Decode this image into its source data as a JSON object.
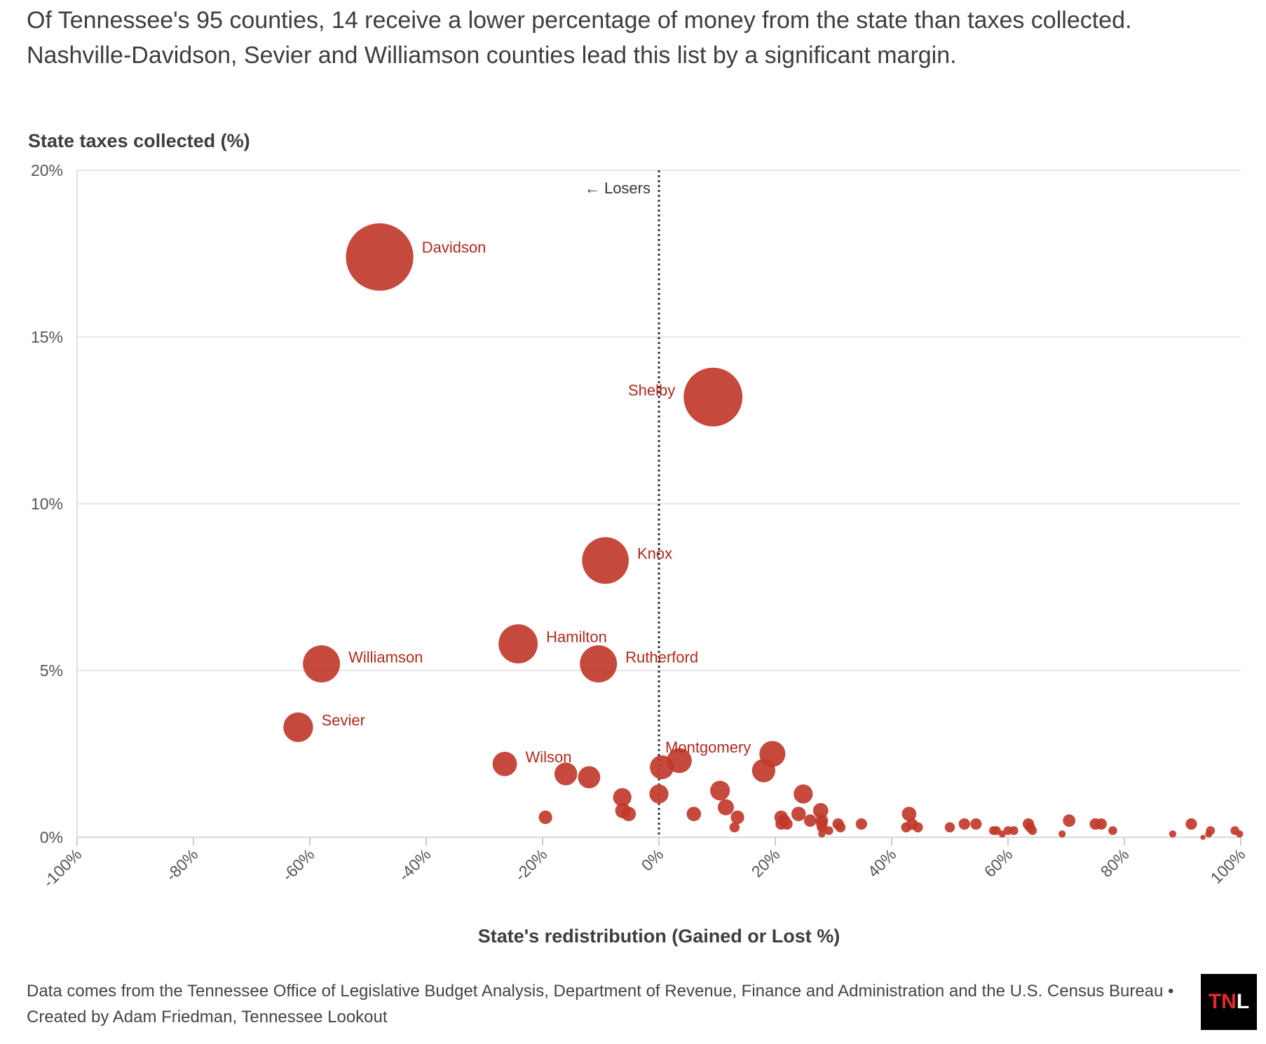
{
  "subtitle": {
    "line1": "Of Tennessee's 95 counties, 14 receive a lower percentage of money from the state than taxes collected.",
    "line2": "Nashville-Davidson, Sevier and Williamson counties lead this list by a significant margin."
  },
  "footer": {
    "source": "Data comes from the Tennessee Office of Legislative Budget Analysis, Department of Revenue, Finance and Administration and the U.S. Census Bureau • Created by Adam Friedman, Tennessee Lookout"
  },
  "logo": {
    "part1": "TN",
    "part2": "L"
  },
  "colors": {
    "point": "#c0392b",
    "label": "#b02a1e",
    "grid": "#e6e6e6"
  },
  "chart_data": {
    "type": "scatter",
    "xlabel": "State's redistribution (Gained or Lost %)",
    "ylabel": "State taxes collected (%)",
    "xlim": [
      -100,
      100
    ],
    "ylim": [
      0,
      20
    ],
    "x_ticks": [
      -100,
      -80,
      -60,
      -40,
      -20,
      0,
      20,
      40,
      60,
      80,
      100
    ],
    "x_tick_labels": [
      "-100%",
      "-80%",
      "-60%",
      "-40%",
      "-20%",
      "0%",
      "20%",
      "40%",
      "60%",
      "80%",
      "100%"
    ],
    "y_ticks": [
      0,
      5,
      10,
      15,
      20
    ],
    "y_tick_labels": [
      "0%",
      "5%",
      "10%",
      "15%",
      "20%"
    ],
    "grid": "horizontal",
    "reference_line": {
      "x": 0,
      "style": "dotted",
      "label": "← Losers"
    },
    "points": [
      {
        "x": -48,
        "y": 17.4,
        "label": "Davidson",
        "label_side": "right"
      },
      {
        "x": 9.3,
        "y": 13.2,
        "label": "Shelby",
        "label_side": "left"
      },
      {
        "x": -9.2,
        "y": 8.3,
        "label": "Knox",
        "label_side": "right"
      },
      {
        "x": -24.2,
        "y": 5.8,
        "label": "Hamilton",
        "label_side": "right"
      },
      {
        "x": -10.4,
        "y": 5.2,
        "label": "Rutherford",
        "label_side": "right"
      },
      {
        "x": -58,
        "y": 5.2,
        "label": "Williamson",
        "label_side": "right"
      },
      {
        "x": -62,
        "y": 3.3,
        "label": "Sevier",
        "label_side": "right"
      },
      {
        "x": -26.5,
        "y": 2.2,
        "label": "Wilson",
        "label_side": "right"
      },
      {
        "x": 19.5,
        "y": 2.5,
        "label": "Montgomery",
        "label_side": "left"
      },
      {
        "x": 3.5,
        "y": 2.3
      },
      {
        "x": 0.5,
        "y": 2.1
      },
      {
        "x": 18,
        "y": 2.0
      },
      {
        "x": -16,
        "y": 1.9
      },
      {
        "x": -12,
        "y": 1.8
      },
      {
        "x": 10.5,
        "y": 1.4
      },
      {
        "x": 0,
        "y": 1.3
      },
      {
        "x": 24.8,
        "y": 1.3
      },
      {
        "x": -6.3,
        "y": 1.2
      },
      {
        "x": 11.5,
        "y": 0.9
      },
      {
        "x": -6.2,
        "y": 0.8
      },
      {
        "x": 27.8,
        "y": 0.8
      },
      {
        "x": -5.2,
        "y": 0.7
      },
      {
        "x": 6,
        "y": 0.7
      },
      {
        "x": 24,
        "y": 0.7
      },
      {
        "x": 43,
        "y": 0.7
      },
      {
        "x": -19.5,
        "y": 0.6
      },
      {
        "x": 13.5,
        "y": 0.6
      },
      {
        "x": 21,
        "y": 0.6
      },
      {
        "x": 21.5,
        "y": 0.5
      },
      {
        "x": 26,
        "y": 0.5
      },
      {
        "x": 28,
        "y": 0.5
      },
      {
        "x": 70.5,
        "y": 0.5
      },
      {
        "x": 21,
        "y": 0.4
      },
      {
        "x": 22,
        "y": 0.4
      },
      {
        "x": 28,
        "y": 0.4
      },
      {
        "x": 30.8,
        "y": 0.4
      },
      {
        "x": 34.8,
        "y": 0.4
      },
      {
        "x": 43.5,
        "y": 0.4
      },
      {
        "x": 52.5,
        "y": 0.4
      },
      {
        "x": 54.5,
        "y": 0.4
      },
      {
        "x": 63.5,
        "y": 0.4
      },
      {
        "x": 75,
        "y": 0.4
      },
      {
        "x": 76,
        "y": 0.4
      },
      {
        "x": 91.5,
        "y": 0.4
      },
      {
        "x": 13,
        "y": 0.3
      },
      {
        "x": 28,
        "y": 0.3
      },
      {
        "x": 31.2,
        "y": 0.3
      },
      {
        "x": 42.5,
        "y": 0.3
      },
      {
        "x": 44.5,
        "y": 0.3
      },
      {
        "x": 50,
        "y": 0.3
      },
      {
        "x": 63.8,
        "y": 0.3
      },
      {
        "x": 29.2,
        "y": 0.2
      },
      {
        "x": 57.5,
        "y": 0.2
      },
      {
        "x": 58,
        "y": 0.2
      },
      {
        "x": 60,
        "y": 0.2
      },
      {
        "x": 61,
        "y": 0.2
      },
      {
        "x": 64.2,
        "y": 0.2
      },
      {
        "x": 78,
        "y": 0.2
      },
      {
        "x": 94.8,
        "y": 0.2
      },
      {
        "x": 99,
        "y": 0.2
      },
      {
        "x": 28,
        "y": 0.1
      },
      {
        "x": 59,
        "y": 0.1
      },
      {
        "x": 69.3,
        "y": 0.1
      },
      {
        "x": 88.3,
        "y": 0.1
      },
      {
        "x": 94.5,
        "y": 0.1
      },
      {
        "x": 99.8,
        "y": 0.1
      },
      {
        "x": 93.5,
        "y": 0.0
      }
    ]
  }
}
